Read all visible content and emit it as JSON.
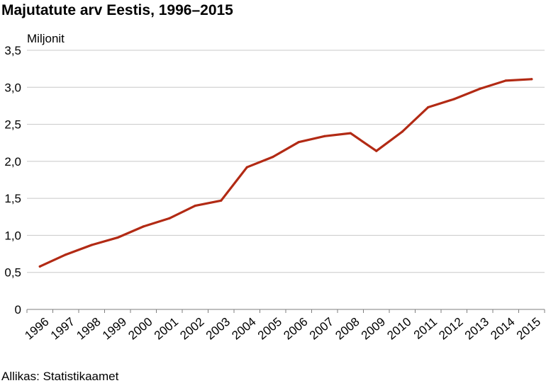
{
  "chart_data": {
    "type": "line",
    "title": "Majutatute arv Eestis, 1996–2015",
    "ylabel": "Miljonit",
    "xlabel": "",
    "categories": [
      "1996",
      "1997",
      "1998",
      "1999",
      "2000",
      "2001",
      "2002",
      "2003",
      "2004",
      "2005",
      "2006",
      "2007",
      "2008",
      "2009",
      "2010",
      "2011",
      "2012",
      "2013",
      "2014",
      "2015"
    ],
    "series": [
      {
        "color": "#b22a14",
        "values": [
          0.58,
          0.74,
          0.87,
          0.97,
          1.12,
          1.23,
          1.4,
          1.47,
          1.92,
          2.06,
          2.26,
          2.34,
          2.38,
          2.14,
          2.4,
          2.73,
          2.84,
          2.98,
          3.09,
          3.11
        ]
      }
    ],
    "ylim": [
      0,
      3.5
    ],
    "yticks": [
      0,
      0.5,
      1.0,
      1.5,
      2.0,
      2.5,
      3.0,
      3.5
    ],
    "ytick_labels": [
      "0",
      "0,5",
      "1,0",
      "1,5",
      "2,0",
      "2,5",
      "3,0",
      "3,5"
    ],
    "grid": true,
    "grid_color": "#c8c8c8",
    "axis_color": "#7f7f7f"
  },
  "source": "Allikas: Statistikaamet"
}
